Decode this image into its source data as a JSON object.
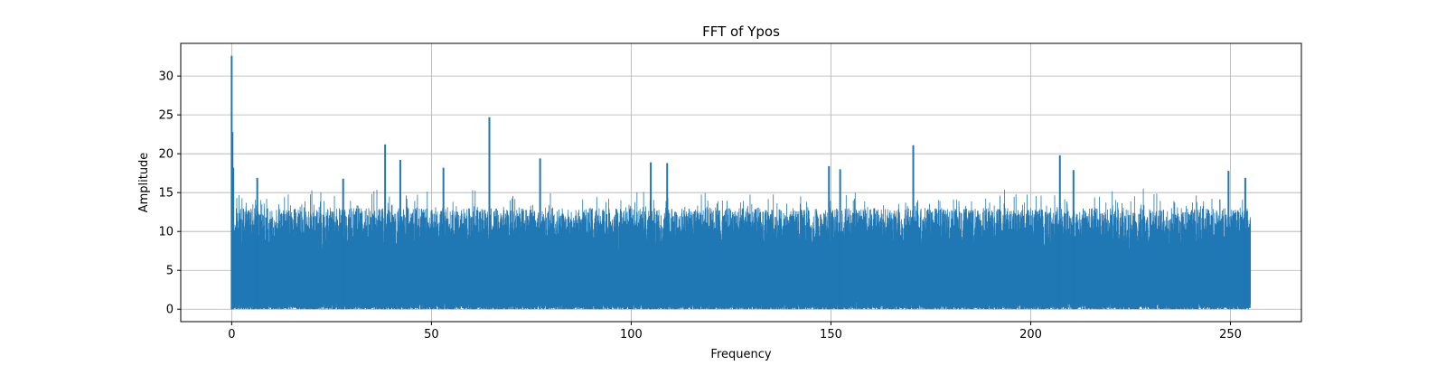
{
  "chart_data": {
    "type": "line",
    "title": "FFT of Ypos",
    "xlabel": "Frequency",
    "ylabel": "Amplitude",
    "xlim": [
      -12.75,
      267.75
    ],
    "ylim": [
      -1.6,
      34.2
    ],
    "x_ticks": [
      0,
      50,
      100,
      150,
      200,
      250
    ],
    "y_ticks": [
      0,
      5,
      10,
      15,
      20,
      25,
      30
    ],
    "grid": true,
    "legend": "none",
    "series": [
      {
        "color": "#1f77b4",
        "x_range": [
          0,
          255
        ],
        "noise_band": [
          0,
          13
        ],
        "peaks": [
          {
            "x": 0.0,
            "y": 32.6
          },
          {
            "x": 0.2,
            "y": 22.8
          },
          {
            "x": 0.4,
            "y": 18.2
          },
          {
            "x": 6.4,
            "y": 16.9
          },
          {
            "x": 27.9,
            "y": 16.8
          },
          {
            "x": 38.4,
            "y": 21.2
          },
          {
            "x": 42.2,
            "y": 19.2
          },
          {
            "x": 53.0,
            "y": 18.2
          },
          {
            "x": 64.5,
            "y": 24.7
          },
          {
            "x": 77.2,
            "y": 19.4
          },
          {
            "x": 104.9,
            "y": 18.9
          },
          {
            "x": 109.0,
            "y": 18.8
          },
          {
            "x": 149.5,
            "y": 18.4
          },
          {
            "x": 152.3,
            "y": 18.0
          },
          {
            "x": 170.6,
            "y": 21.1
          },
          {
            "x": 207.3,
            "y": 19.8
          },
          {
            "x": 210.7,
            "y": 17.9
          },
          {
            "x": 249.5,
            "y": 17.8
          },
          {
            "x": 253.7,
            "y": 16.9
          }
        ]
      }
    ]
  }
}
